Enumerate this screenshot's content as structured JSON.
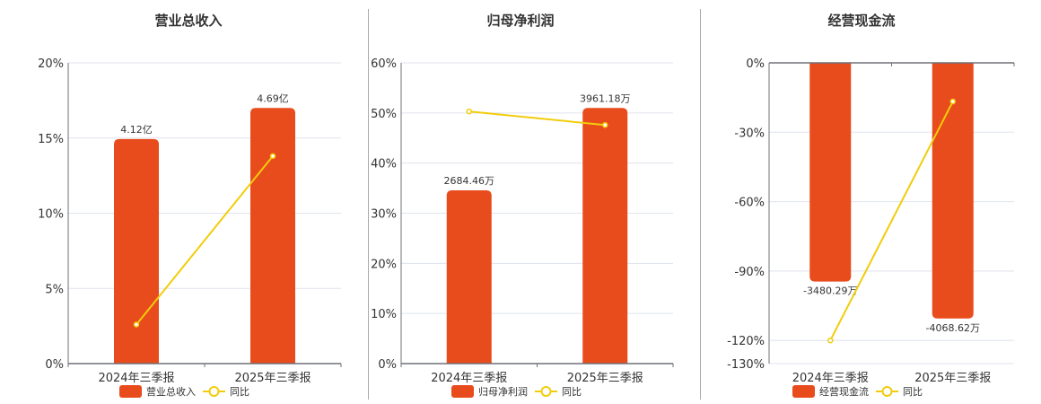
{
  "colors": {
    "bar": "#e84c1c",
    "line": "#f2cc0c",
    "grid": "#dfe3ee",
    "axis": "#6e7079",
    "divider": "#aaaaaa"
  },
  "chart_data": [
    {
      "type": "bar+line",
      "title": "营业总收入",
      "categories": [
        "2024年三季报",
        "2025年三季报"
      ],
      "bar_series": {
        "name": "营业总收入",
        "values": [
          4.12,
          4.69
        ],
        "labels": [
          "4.12亿",
          "4.69亿"
        ],
        "unit": "亿"
      },
      "line_series": {
        "name": "同比",
        "values": [
          2.6,
          13.8
        ],
        "unit": "%"
      },
      "y_ticks": [
        "0%",
        "5%",
        "10%",
        "15%",
        "20%"
      ],
      "ylim": [
        0,
        20
      ],
      "grid": true,
      "legend": "bottom"
    },
    {
      "type": "bar+line",
      "title": "归母净利润",
      "categories": [
        "2024年三季报",
        "2025年三季报"
      ],
      "bar_series": {
        "name": "归母净利润",
        "values": [
          2684.46,
          3961.18
        ],
        "labels": [
          "2684.46万",
          "3961.18万"
        ],
        "unit": "万"
      },
      "line_series": {
        "name": "同比",
        "values": [
          50.3,
          47.6
        ],
        "unit": "%"
      },
      "y_ticks": [
        "0%",
        "10%",
        "20%",
        "30%",
        "40%",
        "50%",
        "60%"
      ],
      "ylim": [
        0,
        60
      ],
      "grid": true,
      "legend": "bottom"
    },
    {
      "type": "bar+line",
      "title": "经营现金流",
      "categories": [
        "2024年三季报",
        "2025年三季报"
      ],
      "bar_series": {
        "name": "经营现金流",
        "values": [
          -3480.29,
          -4068.62
        ],
        "labels": [
          "-3480.29万",
          "-4068.62万"
        ],
        "unit": "万"
      },
      "line_series": {
        "name": "同比",
        "values": [
          -120,
          -16.7
        ],
        "unit": "%"
      },
      "y_ticks": [
        "0%",
        "-30%",
        "-60%",
        "-90%",
        "-120%",
        "-130%"
      ],
      "ylim": [
        -130,
        0
      ],
      "grid": true,
      "legend": "bottom"
    }
  ]
}
